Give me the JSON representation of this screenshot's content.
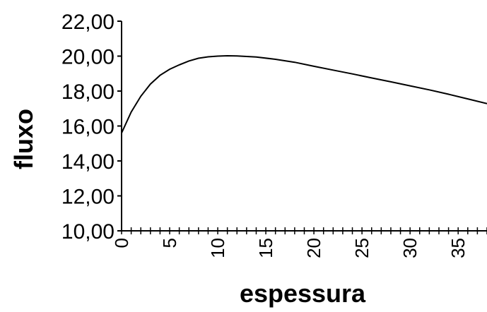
{
  "chart_data": {
    "type": "line",
    "xlabel": "espessura",
    "ylabel": "fluxo",
    "xlim": [
      0,
      38
    ],
    "ylim": [
      10,
      22
    ],
    "y_ticks": [
      "10,00",
      "12,00",
      "14,00",
      "16,00",
      "18,00",
      "20,00",
      "22,00"
    ],
    "y_tick_values": [
      10,
      12,
      14,
      16,
      18,
      20,
      22
    ],
    "x_ticks": [
      "0",
      "5",
      "10",
      "15",
      "20",
      "25",
      "30",
      "35"
    ],
    "x_tick_values": [
      0,
      5,
      10,
      15,
      20,
      25,
      30,
      35
    ],
    "grid": false,
    "line_color": "#000000",
    "series": [
      {
        "x": [
          0,
          1,
          2,
          3,
          4,
          5,
          6,
          7,
          8,
          9,
          10,
          11,
          12,
          14,
          16,
          18,
          20,
          22,
          24,
          26,
          28,
          30,
          32,
          34,
          36,
          38
        ],
        "values": [
          15.6,
          16.8,
          17.7,
          18.4,
          18.9,
          19.25,
          19.5,
          19.72,
          19.88,
          19.96,
          20.0,
          20.02,
          20.01,
          19.95,
          19.82,
          19.65,
          19.42,
          19.2,
          18.98,
          18.75,
          18.53,
          18.3,
          18.07,
          17.82,
          17.55,
          17.28
        ]
      }
    ]
  }
}
